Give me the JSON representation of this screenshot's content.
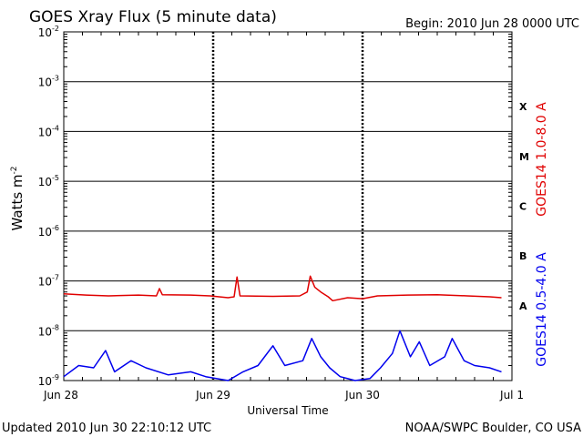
{
  "chart_data": {
    "type": "line",
    "title": "GOES Xray Flux (5 minute data)",
    "begin_label": "Begin:  2010 Jun 28 0000 UTC",
    "ylabel": "Watts m",
    "ylabel_exp": "-2",
    "xlabel": "Universal Time",
    "updated_label": "Updated 2010 Jun 30 22:10:12 UTC",
    "credit_label": "NOAA/SWPC Boulder, CO USA",
    "yscale": "log",
    "ylim": [
      1e-09,
      0.01
    ],
    "y_ticks": [
      {
        "base": "10",
        "exp": "-9",
        "value": 1e-09
      },
      {
        "base": "10",
        "exp": "-8",
        "value": 1e-08
      },
      {
        "base": "10",
        "exp": "-7",
        "value": 1e-07
      },
      {
        "base": "10",
        "exp": "-6",
        "value": 1e-06
      },
      {
        "base": "10",
        "exp": "-5",
        "value": 1e-05
      },
      {
        "base": "10",
        "exp": "-4",
        "value": 0.0001
      },
      {
        "base": "10",
        "exp": "-3",
        "value": 0.001
      },
      {
        "base": "10",
        "exp": "-2",
        "value": 0.01
      }
    ],
    "x_unit": "days since 2010 Jun 28 0000 UTC",
    "xlim": [
      0,
      3
    ],
    "x_ticks": [
      {
        "label": "Jun 28",
        "value": 0
      },
      {
        "label": "Jun 29",
        "value": 1
      },
      {
        "label": "Jun 30",
        "value": 2
      },
      {
        "label": "Jul 1",
        "value": 3
      }
    ],
    "flare_classes": [
      {
        "label": "X",
        "value": 0.000316
      },
      {
        "label": "M",
        "value": 3.16e-05
      },
      {
        "label": "C",
        "value": 3.16e-06
      },
      {
        "label": "B",
        "value": 3.16e-07
      },
      {
        "label": "A",
        "value": 3.16e-08
      }
    ],
    "legend_position": "right",
    "series": [
      {
        "name": "GOES14 1.0-8.0 A",
        "color": "#e00000",
        "points": [
          [
            0,
            5.5e-08
          ],
          [
            0.15,
            5.2e-08
          ],
          [
            0.3,
            5e-08
          ],
          [
            0.5,
            5.2e-08
          ],
          [
            0.62,
            5e-08
          ],
          [
            0.64,
            7e-08
          ],
          [
            0.66,
            5.3e-08
          ],
          [
            0.85,
            5.2e-08
          ],
          [
            0.98,
            5e-08
          ],
          [
            1.1,
            4.6e-08
          ],
          [
            1.14,
            4.8e-08
          ],
          [
            1.16,
            1.2e-07
          ],
          [
            1.18,
            5e-08
          ],
          [
            1.4,
            4.9e-08
          ],
          [
            1.58,
            5e-08
          ],
          [
            1.63,
            6e-08
          ],
          [
            1.65,
            1.25e-07
          ],
          [
            1.68,
            7.5e-08
          ],
          [
            1.72,
            6e-08
          ],
          [
            1.77,
            4.8e-08
          ],
          [
            1.8,
            4e-08
          ],
          [
            1.9,
            4.6e-08
          ],
          [
            2.0,
            4.4e-08
          ],
          [
            2.1,
            5e-08
          ],
          [
            2.3,
            5.2e-08
          ],
          [
            2.5,
            5.3e-08
          ],
          [
            2.7,
            5e-08
          ],
          [
            2.85,
            4.8e-08
          ],
          [
            2.93,
            4.6e-08
          ]
        ]
      },
      {
        "name": "GOES14 0.5-4.0 A",
        "color": "#0000ee",
        "points": [
          [
            0,
            1.2e-09
          ],
          [
            0.1,
            2e-09
          ],
          [
            0.2,
            1.8e-09
          ],
          [
            0.28,
            4e-09
          ],
          [
            0.34,
            1.5e-09
          ],
          [
            0.45,
            2.5e-09
          ],
          [
            0.55,
            1.8e-09
          ],
          [
            0.7,
            1.3e-09
          ],
          [
            0.85,
            1.5e-09
          ],
          [
            0.95,
            1.2e-09
          ],
          [
            1.1,
            1e-09
          ],
          [
            1.2,
            1.5e-09
          ],
          [
            1.3,
            2e-09
          ],
          [
            1.4,
            5e-09
          ],
          [
            1.48,
            2e-09
          ],
          [
            1.6,
            2.5e-09
          ],
          [
            1.66,
            7e-09
          ],
          [
            1.72,
            3e-09
          ],
          [
            1.78,
            1.8e-09
          ],
          [
            1.85,
            1.2e-09
          ],
          [
            1.95,
            1e-09
          ],
          [
            2.05,
            1.1e-09
          ],
          [
            2.12,
            1.8e-09
          ],
          [
            2.2,
            3.5e-09
          ],
          [
            2.25,
            1e-08
          ],
          [
            2.32,
            3e-09
          ],
          [
            2.38,
            6e-09
          ],
          [
            2.45,
            2e-09
          ],
          [
            2.55,
            3e-09
          ],
          [
            2.6,
            7e-09
          ],
          [
            2.68,
            2.5e-09
          ],
          [
            2.75,
            2e-09
          ],
          [
            2.85,
            1.8e-09
          ],
          [
            2.93,
            1.5e-09
          ]
        ]
      }
    ]
  }
}
